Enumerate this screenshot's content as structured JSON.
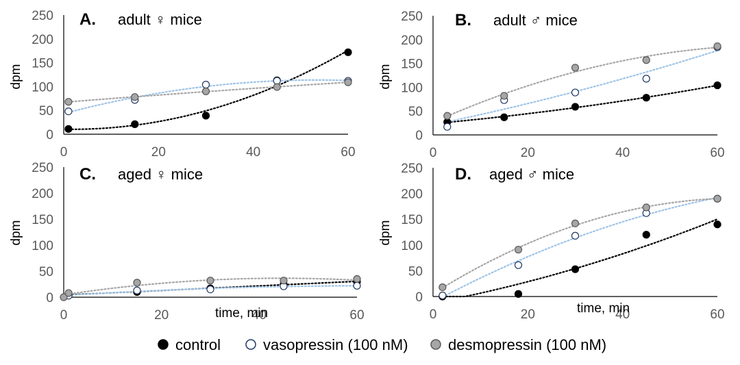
{
  "colors": {
    "control": "#000000",
    "vasopressin_fill": "#ffffff",
    "vasopressin_stroke": "#1f3864",
    "desmopressin": "#a6a6a6",
    "trend_control": "#000000",
    "trend_vasopressin": "#9dc3e6",
    "trend_desmopressin": "#a6a6a6",
    "axis": "#000000",
    "tick_text": "#595959"
  },
  "legend": [
    "control",
    "vasopressin (100 nM)",
    "desmopressin (100 nM)"
  ],
  "chart_data": [
    {
      "type": "scatter",
      "letter": "A.",
      "title": "adult ♀ mice",
      "xlabel": "",
      "ylabel": "dpm",
      "xlim": [
        0,
        60
      ],
      "ylim": [
        0,
        250
      ],
      "xticks": [
        0,
        20,
        40,
        60
      ],
      "yticks": [
        0,
        50,
        100,
        150,
        200,
        250
      ],
      "trendline": "dotted",
      "series": [
        {
          "name": "control",
          "x": [
            1,
            15,
            30,
            45,
            60
          ],
          "y": [
            11,
            21,
            39,
            113,
            172
          ]
        },
        {
          "name": "vasopressin (100 nM)",
          "x": [
            1,
            15,
            30,
            45,
            60
          ],
          "y": [
            48,
            72,
            104,
            112,
            112
          ]
        },
        {
          "name": "desmopressin (100 nM)",
          "x": [
            1,
            15,
            30,
            45,
            60
          ],
          "y": [
            68,
            78,
            90,
            99,
            109
          ]
        }
      ]
    },
    {
      "type": "scatter",
      "letter": "B.",
      "title": "adult ♂ mice",
      "xlabel": "",
      "ylabel": "dpm",
      "xlim": [
        0,
        60
      ],
      "ylim": [
        0,
        250
      ],
      "xticks": [
        0,
        20,
        40,
        60
      ],
      "yticks": [
        0,
        50,
        100,
        150,
        200,
        250
      ],
      "trendline": "dotted",
      "series": [
        {
          "name": "control",
          "x": [
            3,
            15,
            30,
            45,
            60
          ],
          "y": [
            27,
            37,
            59,
            78,
            104
          ]
        },
        {
          "name": "vasopressin (100 nM)",
          "x": [
            3,
            15,
            30,
            45,
            60
          ],
          "y": [
            17,
            73,
            89,
            118,
            184
          ]
        },
        {
          "name": "desmopressin (100 nM)",
          "x": [
            3,
            15,
            30,
            45,
            60
          ],
          "y": [
            40,
            82,
            141,
            157,
            186
          ]
        }
      ]
    },
    {
      "type": "scatter",
      "letter": "C.",
      "title": "aged ♀ mice",
      "xlabel": "time, min",
      "ylabel": "dpm",
      "xlim": [
        0,
        60
      ],
      "ylim": [
        0,
        250
      ],
      "xticks": [
        0,
        20,
        40,
        60
      ],
      "yticks": [
        0,
        50,
        100,
        150,
        200,
        250
      ],
      "trendline": "dotted",
      "series": [
        {
          "name": "control",
          "x": [
            1,
            15,
            30,
            45,
            60
          ],
          "y": [
            5,
            10,
            17,
            25,
            30
          ]
        },
        {
          "name": "vasopressin (100 nM)",
          "x": [
            1,
            15,
            30,
            45,
            60
          ],
          "y": [
            3,
            13,
            15,
            21,
            22
          ]
        },
        {
          "name": "desmopressin (100 nM)",
          "x": [
            0,
            1,
            15,
            30,
            45,
            60
          ],
          "y": [
            0,
            8,
            28,
            32,
            32,
            35
          ]
        }
      ]
    },
    {
      "type": "scatter",
      "letter": "D.",
      "title": "aged ♂ mice",
      "xlabel": "time, min",
      "ylabel": "dpm",
      "xlim": [
        0,
        60
      ],
      "ylim": [
        0,
        250
      ],
      "xticks": [
        0,
        20,
        40,
        60
      ],
      "yticks": [
        0,
        50,
        100,
        150,
        200,
        250
      ],
      "trendline": "dotted",
      "series": [
        {
          "name": "control",
          "x": [
            2,
            18,
            30,
            45,
            60
          ],
          "y": [
            0,
            5,
            53,
            120,
            140
          ]
        },
        {
          "name": "vasopressin (100 nM)",
          "x": [
            2,
            18,
            30,
            45,
            60
          ],
          "y": [
            2,
            61,
            118,
            162,
            190
          ]
        },
        {
          "name": "desmopressin (100 nM)",
          "x": [
            2,
            18,
            30,
            45,
            60
          ],
          "y": [
            18,
            91,
            142,
            173,
            190
          ]
        }
      ]
    }
  ]
}
